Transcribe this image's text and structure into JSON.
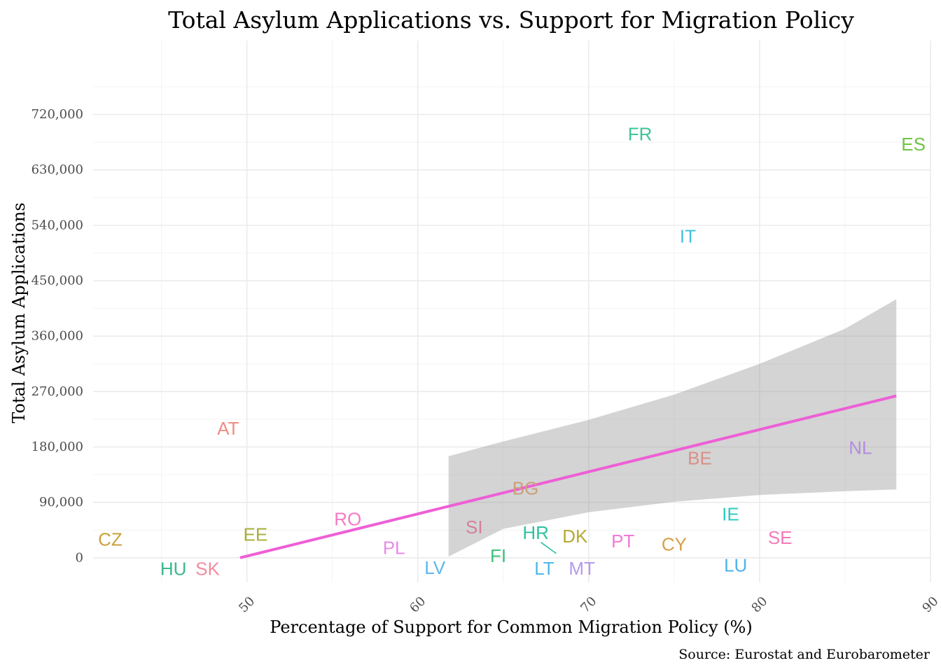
{
  "chart_data": {
    "type": "scatter",
    "title": "Total Asylum Applications vs. Support for Migration Policy",
    "xlabel": "Percentage of Support for Common Migration Policy (%)",
    "ylabel": "Total Asylum Applications",
    "caption": "Source: Eurostat and Eurobarometer",
    "xlim": [
      41,
      90
    ],
    "ylim": [
      -40000,
      840000
    ],
    "x_ticks": [
      50,
      60,
      70,
      80,
      90
    ],
    "y_ticks": [
      0,
      90000,
      180000,
      270000,
      360000,
      450000,
      540000,
      630000,
      720000
    ],
    "y_tick_labels": [
      "0",
      "90,000",
      "180,000",
      "270,000",
      "360,000",
      "450,000",
      "540,000",
      "630,000",
      "720,000"
    ],
    "grid": true,
    "legend": "none",
    "points": [
      {
        "label": "CZ",
        "x": 42.0,
        "y": 30000,
        "color": "#C9A23C"
      },
      {
        "label": "HU",
        "x": 45.7,
        "y": -18000,
        "color": "#3DB78E"
      },
      {
        "label": "SK",
        "x": 47.7,
        "y": -18000,
        "color": "#F28DA0"
      },
      {
        "label": "AT",
        "x": 48.9,
        "y": 210000,
        "color": "#F08C84"
      },
      {
        "label": "EE",
        "x": 50.5,
        "y": 38000,
        "color": "#A8B03A"
      },
      {
        "label": "RO",
        "x": 55.9,
        "y": 63000,
        "color": "#F47AC4"
      },
      {
        "label": "PL",
        "x": 58.6,
        "y": 16000,
        "color": "#E88AE6"
      },
      {
        "label": "LV",
        "x": 61.0,
        "y": -16000,
        "color": "#5BB8F0"
      },
      {
        "label": "SI",
        "x": 63.3,
        "y": 50000,
        "color": "#D47F9F"
      },
      {
        "label": "FI",
        "x": 64.7,
        "y": 3000,
        "color": "#3EC27A"
      },
      {
        "label": "BG",
        "x": 66.3,
        "y": 113000,
        "color": "#C9A07A"
      },
      {
        "label": "HR",
        "x": 66.9,
        "y": 41000,
        "color": "#2EC2A0"
      },
      {
        "label": "LT",
        "x": 67.4,
        "y": -17000,
        "color": "#4DB9E8"
      },
      {
        "label": "DK",
        "x": 69.2,
        "y": 35000,
        "color": "#B5AA33"
      },
      {
        "label": "MT",
        "x": 69.6,
        "y": -17000,
        "color": "#B49AF0"
      },
      {
        "label": "PT",
        "x": 72.0,
        "y": 27000,
        "color": "#F27AD6"
      },
      {
        "label": "FR",
        "x": 73.0,
        "y": 688000,
        "color": "#3DC596"
      },
      {
        "label": "CY",
        "x": 75.0,
        "y": 22000,
        "color": "#D4A046"
      },
      {
        "label": "IT",
        "x": 75.8,
        "y": 522000,
        "color": "#40C2DE"
      },
      {
        "label": "BE",
        "x": 76.5,
        "y": 162000,
        "color": "#D89088"
      },
      {
        "label": "IE",
        "x": 78.3,
        "y": 71000,
        "color": "#2ECBC0"
      },
      {
        "label": "LU",
        "x": 78.6,
        "y": -12000,
        "color": "#4BB3EE"
      },
      {
        "label": "SE",
        "x": 81.2,
        "y": 33000,
        "color": "#F37AB8"
      },
      {
        "label": "NL",
        "x": 85.9,
        "y": 179000,
        "color": "#B58BE2"
      },
      {
        "label": "ES",
        "x": 89.0,
        "y": 672000,
        "color": "#6FC444"
      }
    ],
    "trend": {
      "method": "lm",
      "color": "#EE5FD6",
      "x": [
        49.6,
        88.0
      ],
      "y": [
        0,
        263000
      ]
    },
    "confidence_band": {
      "color": "#999999",
      "x": [
        61.8,
        65,
        70,
        75,
        80,
        85,
        88.0
      ],
      "lower": [
        2000,
        47000,
        74000,
        91000,
        102000,
        108000,
        111000
      ],
      "upper": [
        165000,
        189000,
        224000,
        265000,
        315000,
        372000,
        420000
      ]
    },
    "label_leader": {
      "from_label": "HR",
      "x": [
        67.2,
        68.1
      ],
      "y": [
        25000,
        7000
      ]
    }
  }
}
